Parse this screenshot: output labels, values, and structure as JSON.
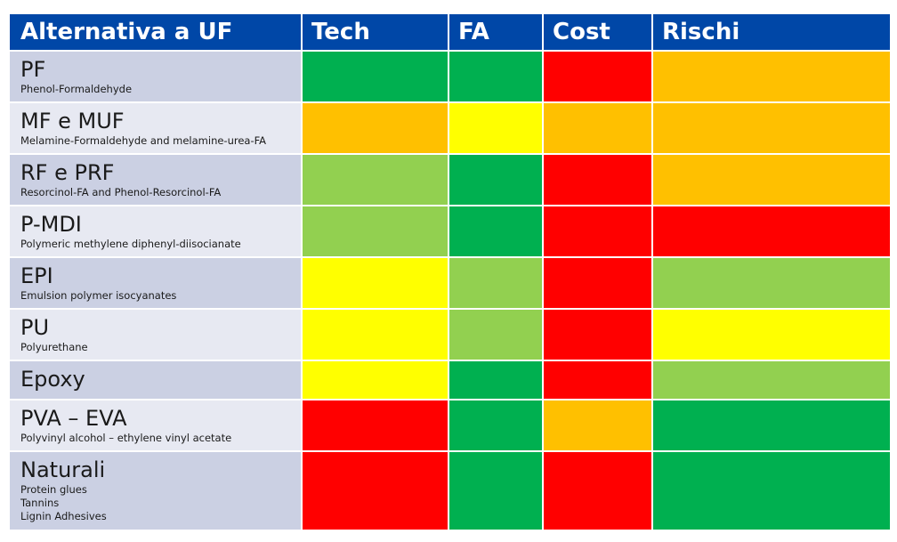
{
  "headers": [
    "Alternativa a UF",
    "Tech",
    "FA",
    "Cost",
    "Rischi"
  ],
  "rows": [
    {
      "name": "PF",
      "desc": [
        "Phenol-Formaldehyde"
      ],
      "ratings": [
        "dark-green",
        "dark-green",
        "red",
        "orange"
      ]
    },
    {
      "name": "MF e MUF",
      "desc": [
        "Melamine-Formaldehyde and melamine-urea-FA"
      ],
      "ratings": [
        "orange",
        "yellow",
        "orange",
        "orange"
      ]
    },
    {
      "name": "RF e PRF",
      "desc": [
        "Resorcinol-FA and Phenol-Resorcinol-FA"
      ],
      "ratings": [
        "light-green",
        "dark-green",
        "red",
        "orange"
      ]
    },
    {
      "name": "P-MDI",
      "desc": [
        "Polymeric methylene diphenyl-diisocianate"
      ],
      "ratings": [
        "light-green",
        "dark-green",
        "red",
        "red"
      ]
    },
    {
      "name": "EPI",
      "desc": [
        "Emulsion polymer isocyanates"
      ],
      "ratings": [
        "yellow",
        "light-green",
        "red",
        "light-green"
      ]
    },
    {
      "name": "PU",
      "desc": [
        "Polyurethane"
      ],
      "ratings": [
        "yellow",
        "light-green",
        "red",
        "yellow"
      ]
    },
    {
      "name": "Epoxy",
      "desc": [],
      "ratings": [
        "yellow",
        "dark-green",
        "red",
        "light-green"
      ]
    },
    {
      "name": "PVA – EVA",
      "desc": [
        "Polyvinyl alcohol – ethylene vinyl acetate"
      ],
      "ratings": [
        "red",
        "dark-green",
        "orange",
        "dark-green"
      ]
    },
    {
      "name": "Naturali",
      "desc": [
        "Protein glues",
        "Tannins",
        "Lignin Adhesives"
      ],
      "ratings": [
        "red",
        "dark-green",
        "red",
        "dark-green"
      ]
    }
  ],
  "colors": {
    "header": "#0047a7",
    "dark-green": "#00b050",
    "light-green": "#92d050",
    "yellow": "#ffff00",
    "orange": "#ffc000",
    "red": "#ff0000"
  }
}
